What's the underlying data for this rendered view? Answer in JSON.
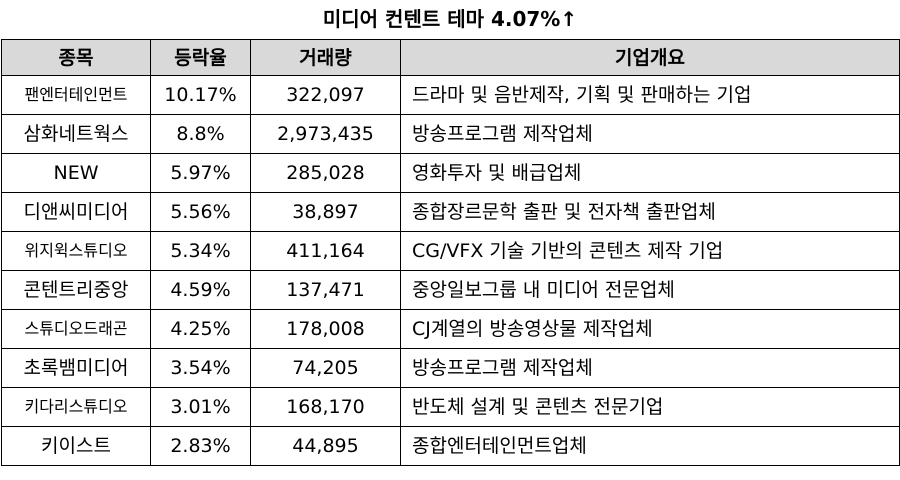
{
  "title": "미디어 컨텐트 테마 4.07%↑",
  "table": {
    "headers": [
      "종목",
      "등락율",
      "거래량",
      "기업개요"
    ],
    "rows": [
      {
        "name": "팬엔터테인먼트",
        "change": "10.17%",
        "volume": "322,097",
        "summary": "드라마 및 음반제작, 기획 및 판매하는 기업",
        "small_name": true
      },
      {
        "name": "삼화네트웍스",
        "change": "8.8%",
        "volume": "2,973,435",
        "summary": "방송프로그램 제작업체",
        "small_name": false
      },
      {
        "name": "NEW",
        "change": "5.97%",
        "volume": "285,028",
        "summary": "영화투자 및 배급업체",
        "small_name": false
      },
      {
        "name": "디앤씨미디어",
        "change": "5.56%",
        "volume": "38,897",
        "summary": "종합장르문학 출판 및 전자책 출판업체",
        "small_name": false
      },
      {
        "name": "위지윅스튜디오",
        "change": "5.34%",
        "volume": "411,164",
        "summary": "CG/VFX 기술 기반의 콘텐츠 제작 기업",
        "small_name": true
      },
      {
        "name": "콘텐트리중앙",
        "change": "4.59%",
        "volume": "137,471",
        "summary": "중앙일보그룹 내 미디어 전문업체",
        "small_name": false
      },
      {
        "name": "스튜디오드래곤",
        "change": "4.25%",
        "volume": "178,008",
        "summary": "CJ계열의 방송영상물 제작업체",
        "small_name": true
      },
      {
        "name": "초록뱀미디어",
        "change": "3.54%",
        "volume": "74,205",
        "summary": "방송프로그램 제작업체",
        "small_name": false
      },
      {
        "name": "키다리스튜디오",
        "change": "3.01%",
        "volume": "168,170",
        "summary": "반도체 설계 및 콘텐츠 전문기업",
        "small_name": true
      },
      {
        "name": "키이스트",
        "change": "2.83%",
        "volume": "44,895",
        "summary": "종합엔터테인먼트업체",
        "small_name": false
      }
    ]
  }
}
